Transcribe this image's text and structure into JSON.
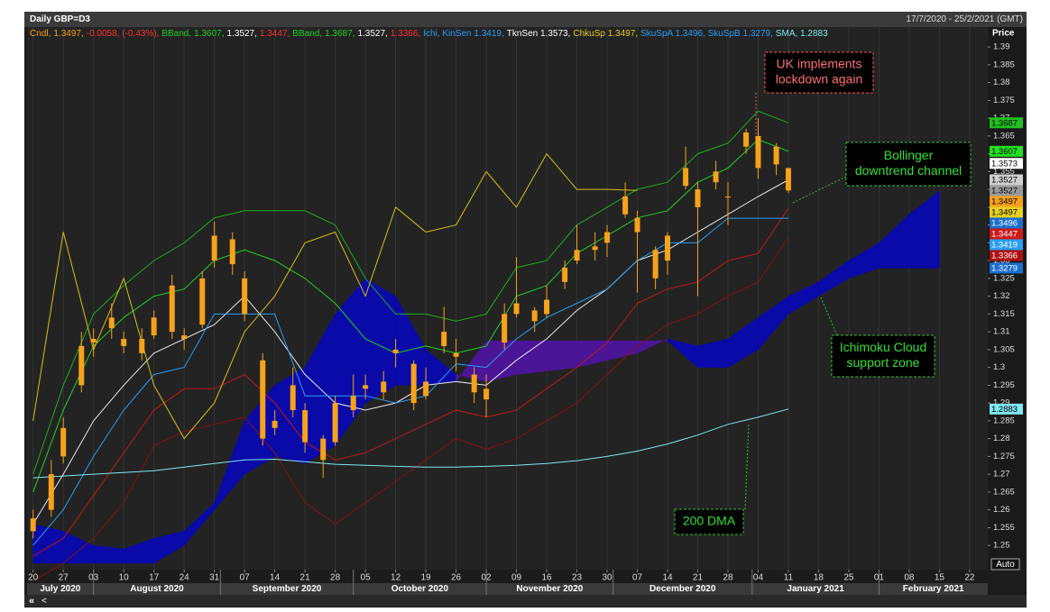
{
  "chart_data": {
    "type": "candlestick",
    "title": "Daily GBP=D3",
    "range_label": "17/7/2020 - 25/2/2021 (GMT)",
    "y_axis_label": "Price",
    "scale_button": "Auto",
    "nav_buttons": [
      "«",
      "<"
    ],
    "legend": [
      {
        "text": "Cndl,",
        "color": "#f7a21b"
      },
      {
        "text": "1.3497,",
        "color": "#f7a21b"
      },
      {
        "text": "-0.0058, (-0.43%),",
        "color": "#ff3030"
      },
      {
        "text": "BBand,",
        "color": "#22d022"
      },
      {
        "text": "1.3607,",
        "color": "#22d022"
      },
      {
        "text": "1.3527,",
        "color": "#ffffff"
      },
      {
        "text": "1.3447,",
        "color": "#ff3030"
      },
      {
        "text": "BBand,",
        "color": "#22d022"
      },
      {
        "text": "1.3687,",
        "color": "#22d022"
      },
      {
        "text": "1.3527,",
        "color": "#ffffff"
      },
      {
        "text": "1.3366,",
        "color": "#ff3030"
      },
      {
        "text": "Ichi, KinSen 1.3419,",
        "color": "#2a9df4"
      },
      {
        "text": "TknSen 1.3573,",
        "color": "#ffffff"
      },
      {
        "text": "ChkuSp 1.3497,",
        "color": "#e8d020"
      },
      {
        "text": "SkuSpA 1.3496, SkuSpB 1.3279,",
        "color": "#2a9df4"
      },
      {
        "text": "SMA, 1.2883",
        "color": "#7fe8f0"
      }
    ],
    "xlim": [
      "2020-07-17",
      "2021-02-25"
    ],
    "ylim": [
      1.2432,
      1.3956
    ],
    "yticks": [
      1.25,
      1.255,
      1.26,
      1.265,
      1.27,
      1.275,
      1.28,
      1.285,
      1.29,
      1.295,
      1.3,
      1.305,
      1.31,
      1.315,
      1.32,
      1.325,
      1.33,
      1.335,
      1.34,
      1.345,
      1.35,
      1.355,
      1.36,
      1.365,
      1.37,
      1.375,
      1.38,
      1.385,
      1.39
    ],
    "xticks": [
      {
        "value": "2020-07-20",
        "label": "20"
      },
      {
        "value": "2020-07-27",
        "label": "27"
      },
      {
        "value": "2020-08-03",
        "label": "03"
      },
      {
        "value": "2020-08-10",
        "label": "10"
      },
      {
        "value": "2020-08-17",
        "label": "17"
      },
      {
        "value": "2020-08-24",
        "label": "24"
      },
      {
        "value": "2020-08-31",
        "label": "31"
      },
      {
        "value": "2020-09-07",
        "label": "07"
      },
      {
        "value": "2020-09-14",
        "label": "14"
      },
      {
        "value": "2020-09-21",
        "label": "21"
      },
      {
        "value": "2020-09-28",
        "label": "28"
      },
      {
        "value": "2020-10-05",
        "label": "05"
      },
      {
        "value": "2020-10-12",
        "label": "12"
      },
      {
        "value": "2020-10-19",
        "label": "19"
      },
      {
        "value": "2020-10-26",
        "label": "26"
      },
      {
        "value": "2020-11-02",
        "label": "02"
      },
      {
        "value": "2020-11-09",
        "label": "09"
      },
      {
        "value": "2020-11-16",
        "label": "16"
      },
      {
        "value": "2020-11-23",
        "label": "23"
      },
      {
        "value": "2020-11-30",
        "label": "30"
      },
      {
        "value": "2020-12-07",
        "label": "07"
      },
      {
        "value": "2020-12-14",
        "label": "14"
      },
      {
        "value": "2020-12-21",
        "label": "21"
      },
      {
        "value": "2020-12-28",
        "label": "28"
      },
      {
        "value": "2021-01-04",
        "label": "04"
      },
      {
        "value": "2021-01-11",
        "label": "11"
      },
      {
        "value": "2021-01-18",
        "label": "18"
      },
      {
        "value": "2021-01-25",
        "label": "25"
      },
      {
        "value": "2021-02-01",
        "label": "01"
      },
      {
        "value": "2021-02-08",
        "label": "08"
      },
      {
        "value": "2021-02-15",
        "label": "15"
      },
      {
        "value": "2021-02-22",
        "label": "22"
      }
    ],
    "months": [
      {
        "value": "2020-07-01",
        "label": "July 2020"
      },
      {
        "value": "2020-08-01",
        "label": "August 2020"
      },
      {
        "value": "2020-09-01",
        "label": "September 2020"
      },
      {
        "value": "2020-10-01",
        "label": "October 2020"
      },
      {
        "value": "2020-11-01",
        "label": "November 2020"
      },
      {
        "value": "2020-12-01",
        "label": "December 2020"
      },
      {
        "value": "2021-01-01",
        "label": "January 2021"
      },
      {
        "value": "2021-02-01",
        "label": "February 2021"
      }
    ],
    "candle_color": "#f7a21b",
    "candles": {
      "x": [
        "2020-07-20",
        "2020-07-23",
        "2020-07-27",
        "2020-07-30",
        "2020-08-03",
        "2020-08-06",
        "2020-08-10",
        "2020-08-13",
        "2020-08-17",
        "2020-08-20",
        "2020-08-24",
        "2020-08-27",
        "2020-08-31",
        "2020-09-03",
        "2020-09-07",
        "2020-09-10",
        "2020-09-14",
        "2020-09-17",
        "2020-09-21",
        "2020-09-24",
        "2020-09-28",
        "2020-10-01",
        "2020-10-05",
        "2020-10-08",
        "2020-10-12",
        "2020-10-15",
        "2020-10-19",
        "2020-10-22",
        "2020-10-26",
        "2020-10-29",
        "2020-11-02",
        "2020-11-05",
        "2020-11-09",
        "2020-11-12",
        "2020-11-16",
        "2020-11-19",
        "2020-11-23",
        "2020-11-26",
        "2020-11-30",
        "2020-12-03",
        "2020-12-07",
        "2020-12-10",
        "2020-12-14",
        "2020-12-17",
        "2020-12-21",
        "2020-12-24",
        "2020-12-28",
        "2020-12-31",
        "2021-01-04",
        "2021-01-07",
        "2021-01-11"
      ],
      "open": [
        1.254,
        1.26,
        1.275,
        1.295,
        1.308,
        1.311,
        1.308,
        1.304,
        1.309,
        1.323,
        1.309,
        1.312,
        1.33,
        1.336,
        1.325,
        1.302,
        1.283,
        1.288,
        1.288,
        1.28,
        1.279,
        1.292,
        1.294,
        1.293,
        1.304,
        1.301,
        1.292,
        1.306,
        1.304,
        1.298,
        1.291,
        1.307,
        1.315,
        1.316,
        1.315,
        1.324,
        1.33,
        1.334,
        1.338,
        1.343,
        1.342,
        1.333,
        1.33,
        1.351,
        1.35,
        1.352,
        1.348,
        1.362,
        1.365,
        1.362,
        1.356
      ],
      "high": [
        1.26,
        1.274,
        1.286,
        1.31,
        1.311,
        1.318,
        1.31,
        1.311,
        1.316,
        1.326,
        1.311,
        1.327,
        1.341,
        1.338,
        1.327,
        1.304,
        1.288,
        1.3,
        1.29,
        1.281,
        1.292,
        1.298,
        1.298,
        1.299,
        1.308,
        1.302,
        1.3,
        1.317,
        1.308,
        1.3,
        1.298,
        1.318,
        1.331,
        1.317,
        1.323,
        1.33,
        1.34,
        1.338,
        1.34,
        1.352,
        1.344,
        1.334,
        1.338,
        1.362,
        1.352,
        1.358,
        1.352,
        1.367,
        1.37,
        1.363,
        1.356
      ],
      "low": [
        1.252,
        1.258,
        1.273,
        1.293,
        1.303,
        1.308,
        1.304,
        1.302,
        1.308,
        1.308,
        1.305,
        1.311,
        1.328,
        1.326,
        1.313,
        1.278,
        1.281,
        1.286,
        1.276,
        1.269,
        1.278,
        1.286,
        1.291,
        1.291,
        1.3,
        1.288,
        1.291,
        1.304,
        1.299,
        1.29,
        1.286,
        1.305,
        1.314,
        1.31,
        1.314,
        1.322,
        1.329,
        1.33,
        1.331,
        1.342,
        1.321,
        1.322,
        1.326,
        1.35,
        1.32,
        1.35,
        1.34,
        1.36,
        1.353,
        1.354,
        1.349
      ],
      "close": [
        1.2576,
        1.27,
        1.283,
        1.306,
        1.307,
        1.314,
        1.306,
        1.308,
        1.314,
        1.31,
        1.308,
        1.325,
        1.337,
        1.329,
        1.315,
        1.28,
        1.285,
        1.295,
        1.279,
        1.274,
        1.29,
        1.288,
        1.295,
        1.296,
        1.305,
        1.29,
        1.296,
        1.31,
        1.303,
        1.293,
        1.294,
        1.315,
        1.318,
        1.313,
        1.319,
        1.328,
        1.333,
        1.333,
        1.335,
        1.348,
        1.338,
        1.325,
        1.337,
        1.356,
        1.345,
        1.355,
        1.348,
        1.366,
        1.356,
        1.357,
        1.3497
      ]
    },
    "line_x": [
      "2020-07-20",
      "2020-07-27",
      "2020-08-03",
      "2020-08-10",
      "2020-08-17",
      "2020-08-24",
      "2020-08-31",
      "2020-09-07",
      "2020-09-14",
      "2020-09-21",
      "2020-09-28",
      "2020-10-05",
      "2020-10-12",
      "2020-10-19",
      "2020-10-26",
      "2020-11-02",
      "2020-11-09",
      "2020-11-16",
      "2020-11-23",
      "2020-11-30",
      "2020-12-07",
      "2020-12-14",
      "2020-12-21",
      "2020-12-28",
      "2021-01-04",
      "2021-01-11"
    ],
    "lines": [
      {
        "color": "#1fae1f",
        "values": [
          1.27,
          1.295,
          1.315,
          1.323,
          1.33,
          1.335,
          1.342,
          1.344,
          1.344,
          1.344,
          1.34,
          1.325,
          1.315,
          1.315,
          1.313,
          1.315,
          1.328,
          1.33,
          1.34,
          1.345,
          1.35,
          1.352,
          1.36,
          1.363,
          1.372,
          1.3687
        ]
      },
      {
        "color": "#22d022",
        "values": [
          1.265,
          1.288,
          1.306,
          1.314,
          1.32,
          1.322,
          1.33,
          1.333,
          1.33,
          1.325,
          1.318,
          1.308,
          1.304,
          1.306,
          1.304,
          1.306,
          1.32,
          1.323,
          1.332,
          1.337,
          1.342,
          1.344,
          1.352,
          1.356,
          1.364,
          1.3607
        ]
      },
      {
        "color": "#e8e8e8",
        "values": [
          1.256,
          1.27,
          1.285,
          1.295,
          1.304,
          1.308,
          1.312,
          1.32,
          1.31,
          1.298,
          1.29,
          1.288,
          1.29,
          1.295,
          1.296,
          1.295,
          1.302,
          1.308,
          1.316,
          1.322,
          1.33,
          1.333,
          1.338,
          1.343,
          1.348,
          1.3527
        ]
      },
      {
        "color": "#c01818",
        "values": [
          1.247,
          1.252,
          1.264,
          1.276,
          1.288,
          1.294,
          1.294,
          1.298,
          1.29,
          1.279,
          1.274,
          1.276,
          1.28,
          1.284,
          1.288,
          1.286,
          1.288,
          1.294,
          1.3,
          1.307,
          1.318,
          1.322,
          1.324,
          1.33,
          1.332,
          1.3447
        ]
      },
      {
        "color": "#8a1010",
        "values": [
          1.24,
          1.245,
          1.252,
          1.262,
          1.278,
          1.282,
          1.284,
          1.286,
          1.276,
          1.262,
          1.256,
          1.262,
          1.268,
          1.274,
          1.28,
          1.277,
          1.28,
          1.285,
          1.29,
          1.298,
          1.306,
          1.312,
          1.315,
          1.32,
          1.324,
          1.3366
        ]
      },
      {
        "color": "#2a9df4",
        "values": [
          1.25,
          1.26,
          1.275,
          1.288,
          1.298,
          1.3,
          1.315,
          1.315,
          1.315,
          1.292,
          1.292,
          1.292,
          1.29,
          1.292,
          1.301,
          1.3,
          1.308,
          1.314,
          1.318,
          1.322,
          1.33,
          1.335,
          1.335,
          1.3419,
          1.3419,
          1.3419
        ]
      },
      {
        "color": "#7fe8f0",
        "values": [
          1.269,
          1.2695,
          1.27,
          1.2705,
          1.271,
          1.272,
          1.273,
          1.274,
          1.2742,
          1.2735,
          1.2728,
          1.2725,
          1.2722,
          1.272,
          1.272,
          1.2722,
          1.2725,
          1.273,
          1.2738,
          1.275,
          1.2765,
          1.2785,
          1.281,
          1.284,
          1.286,
          1.2883
        ]
      }
    ],
    "chikou": {
      "color": "#d8c018",
      "x": [
        "2020-07-20",
        "2020-07-27",
        "2020-08-03",
        "2020-08-10",
        "2020-08-17",
        "2020-08-24",
        "2020-08-31",
        "2020-09-07",
        "2020-09-14",
        "2020-09-21",
        "2020-09-28",
        "2020-10-05",
        "2020-10-12",
        "2020-10-19",
        "2020-10-26",
        "2020-11-02",
        "2020-11-09",
        "2020-11-16",
        "2020-11-23",
        "2020-11-30",
        "2020-12-07"
      ],
      "values": [
        1.285,
        1.338,
        1.305,
        1.325,
        1.295,
        1.28,
        1.29,
        1.31,
        1.32,
        1.335,
        1.338,
        1.32,
        1.345,
        1.338,
        1.34,
        1.355,
        1.345,
        1.36,
        1.35,
        1.35,
        1.3497
      ]
    },
    "cloud": {
      "up_color": "#0a0aa8",
      "down_color": "#4a1596",
      "x": [
        "2020-07-20",
        "2020-07-27",
        "2020-08-03",
        "2020-08-10",
        "2020-08-17",
        "2020-08-24",
        "2020-08-31",
        "2020-09-07",
        "2020-09-14",
        "2020-09-21",
        "2020-09-28",
        "2020-10-05",
        "2020-10-12",
        "2020-10-19",
        "2020-10-26",
        "2020-11-02",
        "2020-11-09",
        "2020-11-16",
        "2020-11-23",
        "2020-11-30",
        "2020-12-07",
        "2020-12-14",
        "2020-12-21",
        "2020-12-28",
        "2021-01-04",
        "2021-01-11",
        "2021-01-18",
        "2021-01-25",
        "2021-02-01",
        "2021-02-08",
        "2021-02-15"
      ],
      "span_a": [
        1.256,
        1.254,
        1.25,
        1.249,
        1.252,
        1.254,
        1.262,
        1.285,
        1.295,
        1.3,
        1.315,
        1.325,
        1.32,
        1.305,
        1.298,
        1.296,
        1.298,
        1.299,
        1.3,
        1.302,
        1.304,
        1.308,
        1.306,
        1.308,
        1.314,
        1.32,
        1.324,
        1.33,
        1.335,
        1.343,
        1.3496
      ],
      "span_b": [
        1.245,
        1.245,
        1.245,
        1.245,
        1.245,
        1.25,
        1.26,
        1.27,
        1.275,
        1.273,
        1.278,
        1.29,
        1.295,
        1.295,
        1.296,
        1.3075,
        1.3075,
        1.3075,
        1.3075,
        1.3075,
        1.3075,
        1.3075,
        1.3,
        1.3,
        1.305,
        1.315,
        1.32,
        1.325,
        1.3279,
        1.3279,
        1.3279
      ]
    },
    "price_labels": [
      {
        "value": 1.3687,
        "bg": "#1fc01f",
        "fg": "#000000"
      },
      {
        "value": 1.3607,
        "bg": "#22e022",
        "fg": "#000000"
      },
      {
        "value": 1.3573,
        "bg": "#ffffff",
        "fg": "#000000"
      },
      {
        "value": 1.3527,
        "bg": "#cfcfcf",
        "fg": "#000000"
      },
      {
        "value": 1.3527,
        "bg": "#9a9a9a",
        "fg": "#000000"
      },
      {
        "value": 1.3497,
        "bg": "#f7a21b",
        "fg": "#000000"
      },
      {
        "value": 1.3497,
        "bg": "#e8d020",
        "fg": "#000000"
      },
      {
        "value": 1.3496,
        "bg": "#1a6fd0",
        "fg": "#ffffff"
      },
      {
        "value": 1.3447,
        "bg": "#d01818",
        "fg": "#ffffff"
      },
      {
        "value": 1.3419,
        "bg": "#2a9df4",
        "fg": "#ffffff"
      },
      {
        "value": 1.3366,
        "bg": "#b01010",
        "fg": "#ffffff"
      },
      {
        "value": 1.3279,
        "bg": "#1a6fd0",
        "fg": "#ffffff"
      },
      {
        "value": 1.2883,
        "bg": "#7fe8f0",
        "fg": "#000000"
      }
    ],
    "annotations": [
      {
        "lines": [
          "UK implements",
          "lockdown again"
        ],
        "color": "#ff7070",
        "border": "#ff5050"
      },
      {
        "lines": [
          "Bollinger",
          "downtrend channel"
        ],
        "color": "#30e030",
        "border": "#30c030"
      },
      {
        "lines": [
          "Ichimoku Cloud",
          "support zone"
        ],
        "color": "#30e030",
        "border": "#30c030"
      },
      {
        "lines": [
          "200 DMA"
        ],
        "color": "#30e030",
        "border": "#30c030"
      }
    ]
  }
}
